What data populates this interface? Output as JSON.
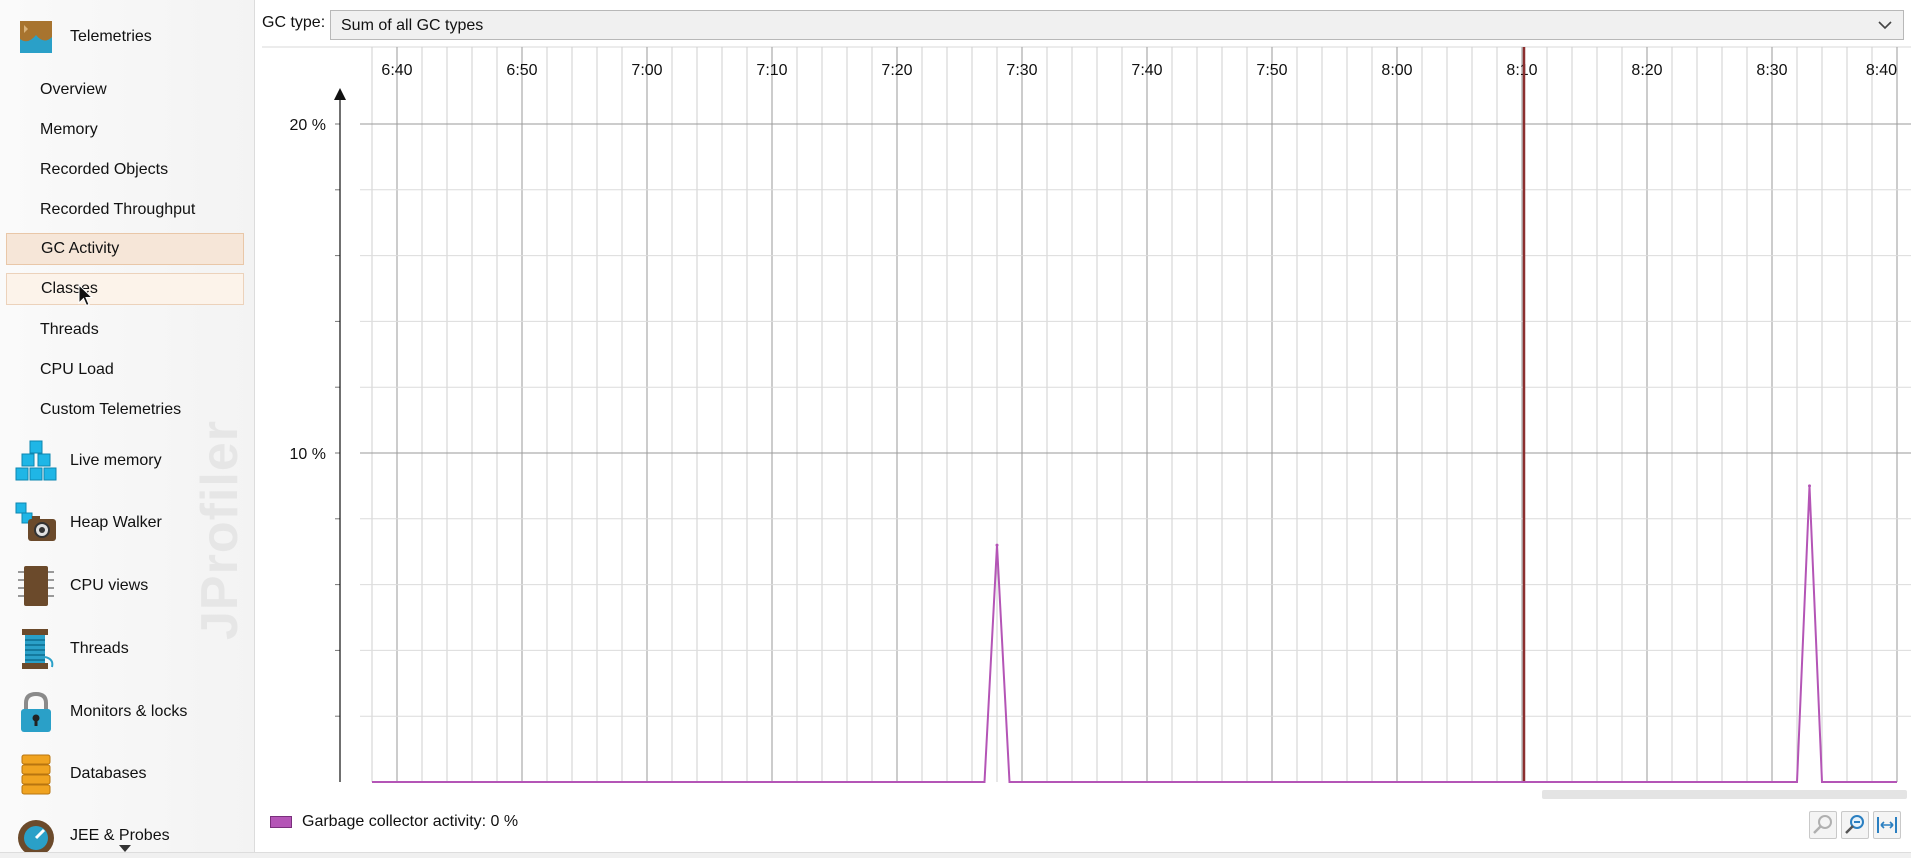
{
  "sidebar": {
    "telemetries": {
      "label": "Telemetries",
      "items": [
        {
          "label": "Overview"
        },
        {
          "label": "Memory"
        },
        {
          "label": "Recorded Objects"
        },
        {
          "label": "Recorded Throughput"
        },
        {
          "label": "GC Activity",
          "state": "selected"
        },
        {
          "label": "Classes",
          "state": "hovered"
        },
        {
          "label": "Threads"
        },
        {
          "label": "CPU Load"
        },
        {
          "label": "Custom Telemetries"
        }
      ]
    },
    "sections": [
      {
        "label": "Live memory",
        "icon": "live-memory-icon"
      },
      {
        "label": "Heap Walker",
        "icon": "heap-walker-icon"
      },
      {
        "label": "CPU views",
        "icon": "cpu-views-icon"
      },
      {
        "label": "Threads",
        "icon": "threads-icon"
      },
      {
        "label": "Monitors & locks",
        "icon": "monitors-locks-icon"
      },
      {
        "label": "Databases",
        "icon": "databases-icon"
      },
      {
        "label": "JEE & Probes",
        "icon": "jee-probes-icon"
      }
    ],
    "watermark": "JProfiler"
  },
  "toolbar": {
    "gc_type_label": "GC type:",
    "gc_type_value": "Sum of all GC types"
  },
  "chart_data": {
    "type": "line",
    "x_ticks": [
      "6:40",
      "6:50",
      "7:00",
      "7:10",
      "7:20",
      "7:30",
      "7:40",
      "7:50",
      "8:00",
      "8:10",
      "8:20",
      "8:30",
      "8:40"
    ],
    "y_ticks": [
      "10 %",
      "20 %"
    ],
    "ylim": [
      0,
      20
    ],
    "series": [
      {
        "name": "Garbage collector activity",
        "color": "#b455b6",
        "points": [
          {
            "t": "6:38",
            "v": 0
          },
          {
            "t": "7:27",
            "v": 0
          },
          {
            "t": "7:28",
            "v": 7.2
          },
          {
            "t": "7:29",
            "v": 0
          },
          {
            "t": "8:32",
            "v": 0
          },
          {
            "t": "8:33",
            "v": 9.0
          },
          {
            "t": "8:34",
            "v": 0
          },
          {
            "t": "8:40",
            "v": 0
          }
        ]
      }
    ],
    "marker_time": "8:10",
    "marker_color": "#8b2e2e",
    "grid": true
  },
  "legend": {
    "text": "Garbage collector activity: 0 %",
    "color": "#b455b6"
  },
  "controls": {
    "zoom_in": "zoom-in-icon",
    "zoom_out": "zoom-out-icon",
    "fit": "fit-icon"
  }
}
